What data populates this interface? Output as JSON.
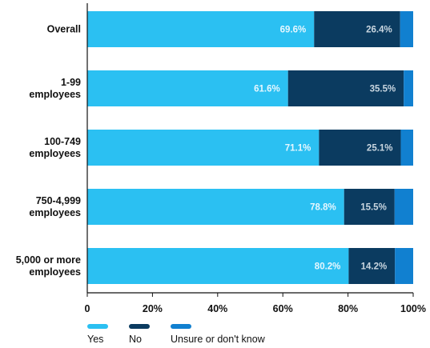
{
  "chart_data": {
    "type": "bar",
    "orientation": "horizontal",
    "stacked": true,
    "categories": [
      "Overall",
      "1-99 employees",
      "100-749 employees",
      "750-4,999 employees",
      "5,000 or more employees"
    ],
    "category_lines": [
      [
        "Overall"
      ],
      [
        "1-99",
        "employees"
      ],
      [
        "100-749",
        "employees"
      ],
      [
        "750-4,999",
        "employees"
      ],
      [
        "5,000 or more",
        "employees"
      ]
    ],
    "series": [
      {
        "name": "Yes",
        "color": "#2bc0f2",
        "values": [
          69.6,
          61.6,
          71.1,
          78.8,
          80.2
        ],
        "labels": [
          "69.6%",
          "61.6%",
          "71.1%",
          "78.8%",
          "80.2%"
        ]
      },
      {
        "name": "No",
        "color": "#0b3b60",
        "values": [
          26.4,
          35.5,
          25.1,
          15.5,
          14.2
        ],
        "labels": [
          "26.4%",
          "35.5%",
          "25.1%",
          "15.5%",
          "14.2%"
        ]
      },
      {
        "name": "Unsure or don't know",
        "color": "#1180d0",
        "values": [
          4.0,
          2.9,
          3.8,
          5.7,
          5.6
        ],
        "labels": []
      }
    ],
    "x_ticks": [
      "0",
      "20%",
      "40%",
      "60%",
      "80%",
      "100%"
    ],
    "xlim": [
      0,
      100
    ],
    "grid": false,
    "legend_position": "bottom-left"
  }
}
